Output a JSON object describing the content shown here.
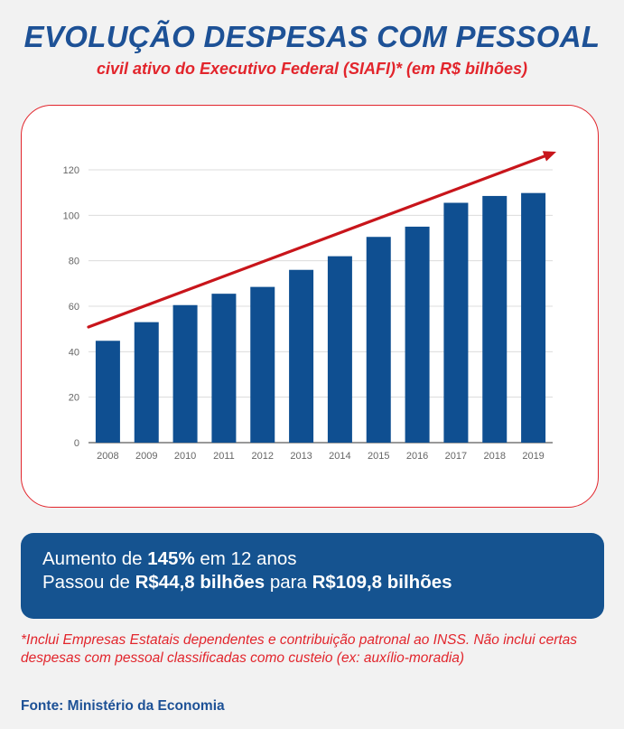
{
  "header": {
    "title": "EVOLUÇÃO DESPESAS COM PESSOAL",
    "subtitle": "civil ativo do Executivo Federal (SIAFI)* (em R$ bilhões)"
  },
  "chart_data": {
    "type": "bar",
    "categories": [
      "2008",
      "2009",
      "2010",
      "2011",
      "2012",
      "2013",
      "2014",
      "2015",
      "2016",
      "2017",
      "2018",
      "2019"
    ],
    "series": [
      {
        "values": [
          44.8,
          53,
          60.5,
          65.5,
          68.5,
          76,
          82,
          90.5,
          95,
          105.5,
          108.5,
          109.8
        ]
      }
    ],
    "yticks": [
      0,
      20,
      40,
      60,
      80,
      100,
      120
    ],
    "ylim": [
      0,
      120
    ],
    "grid": true,
    "bar_color": "#0f4f91",
    "trend_color": "#c8151b",
    "annotations": [
      "trend arrow upward"
    ]
  },
  "summary": {
    "line1_pre": "Aumento de ",
    "line1_bold": "145%",
    "line1_post": " em 12 anos",
    "line2_pre": "Passou de ",
    "line2_bold1": "R$44,8 bilhões",
    "line2_mid": " para ",
    "line2_bold2": "R$109,8 bilhões"
  },
  "footnote": "*Inclui Empresas Estatais dependentes e contribuição patronal ao INSS. Não inclui certas despesas com pessoal classificadas como custeio (ex: auxílio-moradia)",
  "source": "Fonte: Ministério da Economia"
}
